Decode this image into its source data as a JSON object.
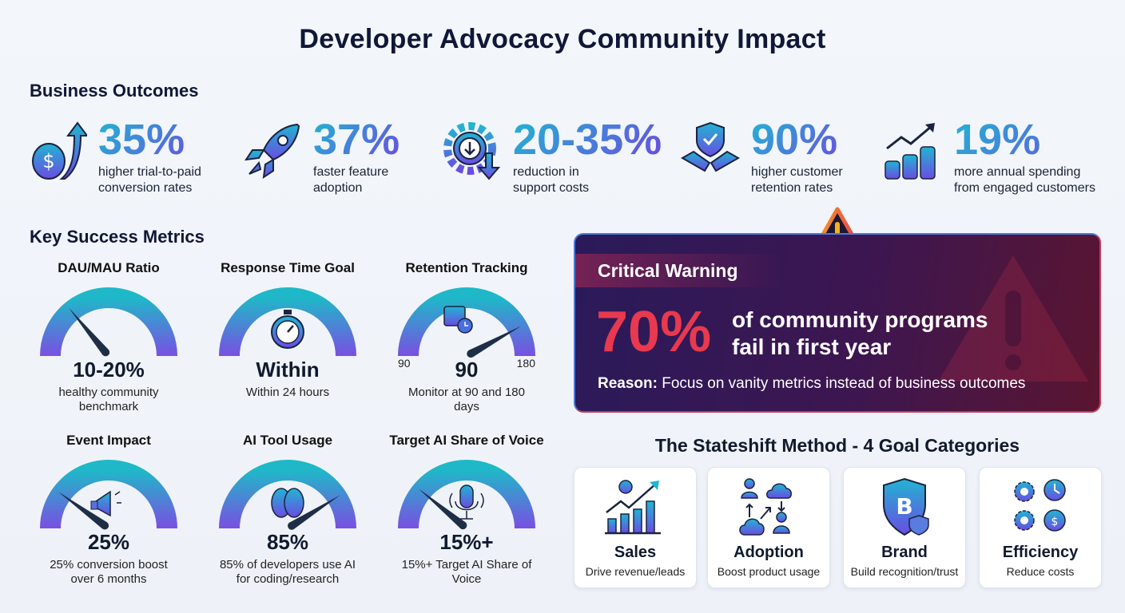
{
  "title": "Developer Advocacy Community Impact",
  "business_outcomes": {
    "heading": "Business Outcomes",
    "items": [
      {
        "icon": "dollar-arrow-up-icon",
        "value": "35%",
        "desc1": "higher trial-to-paid",
        "desc2": "conversion rates"
      },
      {
        "icon": "rocket-icon",
        "value": "37%",
        "desc1": "faster feature",
        "desc2": "adoption"
      },
      {
        "icon": "gear-down-arrow-icon",
        "value": "20-35%",
        "desc1": "reduction in",
        "desc2": "support costs"
      },
      {
        "icon": "handshake-shield-icon",
        "value": "90%",
        "desc1": "higher customer",
        "desc2": "retention rates"
      },
      {
        "icon": "coins-growth-icon",
        "value": "19%",
        "desc1": "more annual spending",
        "desc2": "from engaged customers"
      }
    ]
  },
  "key_metrics": {
    "heading": "Key Success Metrics",
    "gauges": [
      {
        "title": "DAU/MAU Ratio",
        "value": "10-20%",
        "desc": "healthy community benchmark",
        "level": 0.28,
        "icon": ""
      },
      {
        "title": "Response Time Goal",
        "value": "Within",
        "desc": "Within 24 hours",
        "level": null,
        "icon": "stopwatch-icon"
      },
      {
        "title": "Retention Tracking",
        "value": "90",
        "desc": "Monitor at 90 and 180 days",
        "level": 0.84,
        "icon": "calendar-clock-icon",
        "scale_min": "90",
        "scale_max": "180"
      },
      {
        "title": "Event Impact",
        "value": "25%",
        "desc": "25% conversion boost over 6 months",
        "level": 0.2,
        "icon": "megaphone-icon"
      },
      {
        "title": "AI Tool Usage",
        "value": "85%",
        "desc": "85% of developers use AI for coding/research",
        "level": 0.82,
        "icon": "brain-icon"
      },
      {
        "title": "Target AI Share of Voice",
        "value": "15%+",
        "desc": "15%+ Target AI Share of Voice",
        "level": 0.22,
        "icon": "microphone-icon"
      }
    ]
  },
  "warning": {
    "title": "Critical Warning",
    "stat": "70%",
    "text1": "of community programs",
    "text2": "fail in first year",
    "reason_label": "Reason:",
    "reason": " Focus on vanity metrics instead of business outcomes"
  },
  "stateshift": {
    "heading": "The Stateshift Method - 4 Goal Categories",
    "cards": [
      {
        "icon": "sales-chart-icon",
        "title": "Sales",
        "desc": "Drive revenue/leads"
      },
      {
        "icon": "users-cloud-icon",
        "title": "Adoption",
        "desc": "Boost product usage"
      },
      {
        "icon": "shield-coin-icon",
        "title": "Brand",
        "desc": "Build recognition/trust"
      },
      {
        "icon": "gears-clock-icon",
        "title": "Efficiency",
        "desc": "Reduce costs"
      }
    ]
  },
  "colors": {
    "gauge_top": "#1fb8c8",
    "gauge_bottom": "#7a4fe2",
    "needle": "#1e2f45",
    "warning_red": "#e8394f",
    "title": "#101737"
  }
}
